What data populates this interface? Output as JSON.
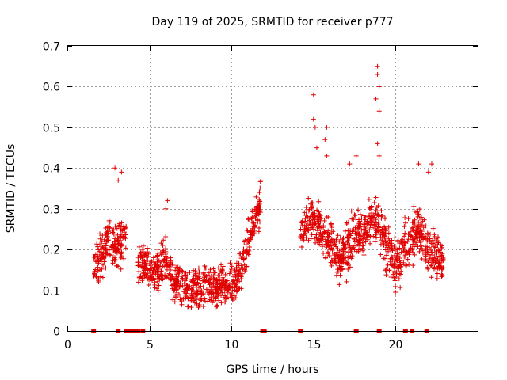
{
  "chart_data": {
    "type": "scatter",
    "title": "Day 119 of 2025, SRMTID for receiver p777",
    "xlabel": "GPS time / hours",
    "ylabel": "SRMTID / TECUs",
    "xlim": [
      0,
      25
    ],
    "ylim": [
      0,
      0.7
    ],
    "xticks": [
      "0",
      "5",
      "10",
      "15",
      "20"
    ],
    "yticks": [
      "0",
      "0.1",
      "0.2",
      "0.3",
      "0.4",
      "0.5",
      "0.6",
      "0.7"
    ],
    "grid": true,
    "marker": "+",
    "color": "#e00000",
    "series": [
      {
        "name": "SRMTID",
        "segments": [
          {
            "x_start": 1.6,
            "x_end": 3.6,
            "y_envelope": [
              [
                1.6,
                0.15
              ],
              [
                2.2,
                0.2
              ],
              [
                2.6,
                0.24
              ],
              [
                3.0,
                0.2
              ],
              [
                3.3,
                0.22
              ],
              [
                3.6,
                0.24
              ]
            ],
            "spread": 0.06
          },
          {
            "x_start": 4.3,
            "x_end": 11.8,
            "y_envelope": [
              [
                4.3,
                0.16
              ],
              [
                5.5,
                0.15
              ],
              [
                6.0,
                0.18
              ],
              [
                6.5,
                0.12
              ],
              [
                7.5,
                0.1
              ],
              [
                8.5,
                0.11
              ],
              [
                9.5,
                0.11
              ],
              [
                10.3,
                0.12
              ],
              [
                10.8,
                0.18
              ],
              [
                11.3,
                0.26
              ],
              [
                11.8,
                0.32
              ]
            ],
            "spread": 0.05
          },
          {
            "x_start": 14.2,
            "x_end": 22.9,
            "y_envelope": [
              [
                14.2,
                0.25
              ],
              [
                15.0,
                0.28
              ],
              [
                15.5,
                0.24
              ],
              [
                16.0,
                0.22
              ],
              [
                16.5,
                0.18
              ],
              [
                17.0,
                0.2
              ],
              [
                17.5,
                0.24
              ],
              [
                18.0,
                0.23
              ],
              [
                18.5,
                0.28
              ],
              [
                19.0,
                0.26
              ],
              [
                19.5,
                0.2
              ],
              [
                20.0,
                0.16
              ],
              [
                20.5,
                0.2
              ],
              [
                21.0,
                0.23
              ],
              [
                21.5,
                0.25
              ],
              [
                22.0,
                0.2
              ],
              [
                22.9,
                0.18
              ]
            ],
            "spread": 0.06
          }
        ],
        "highlights": [
          {
            "x": 2.9,
            "y": 0.4
          },
          {
            "x": 3.3,
            "y": 0.39
          },
          {
            "x": 3.1,
            "y": 0.37
          },
          {
            "x": 6.1,
            "y": 0.32
          },
          {
            "x": 6.0,
            "y": 0.3
          },
          {
            "x": 11.8,
            "y": 0.37
          },
          {
            "x": 11.7,
            "y": 0.34
          },
          {
            "x": 15.0,
            "y": 0.58
          },
          {
            "x": 15.0,
            "y": 0.52
          },
          {
            "x": 15.1,
            "y": 0.5
          },
          {
            "x": 15.2,
            "y": 0.45
          },
          {
            "x": 15.8,
            "y": 0.5
          },
          {
            "x": 15.7,
            "y": 0.47
          },
          {
            "x": 15.8,
            "y": 0.43
          },
          {
            "x": 17.2,
            "y": 0.41
          },
          {
            "x": 17.6,
            "y": 0.43
          },
          {
            "x": 18.9,
            "y": 0.65
          },
          {
            "x": 18.9,
            "y": 0.63
          },
          {
            "x": 19.0,
            "y": 0.6
          },
          {
            "x": 18.8,
            "y": 0.57
          },
          {
            "x": 19.0,
            "y": 0.54
          },
          {
            "x": 18.9,
            "y": 0.46
          },
          {
            "x": 19.0,
            "y": 0.43
          },
          {
            "x": 21.4,
            "y": 0.41
          },
          {
            "x": 22.2,
            "y": 0.41
          },
          {
            "x": 22.0,
            "y": 0.39
          }
        ]
      }
    ],
    "baseline_markers_x": [
      1.6,
      3.1,
      3.6,
      3.8,
      4.1,
      4.2,
      4.3,
      4.6,
      11.9,
      12.0,
      14.2,
      17.6,
      19.0,
      20.6,
      21.0,
      21.9
    ],
    "seed": 119
  }
}
